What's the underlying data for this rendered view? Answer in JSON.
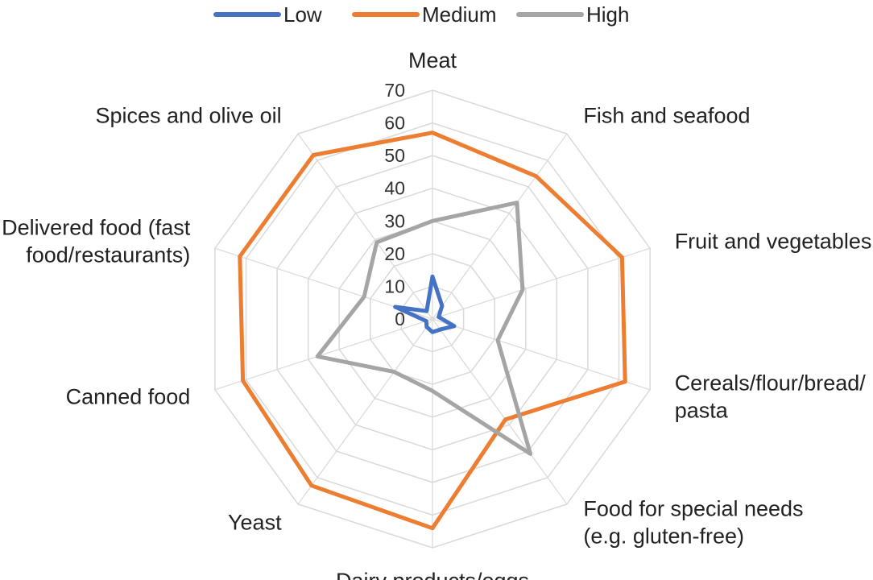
{
  "chart_data": {
    "type": "radar",
    "categories": [
      "Meat",
      "Fish and seafood",
      "Fruit and vegetables",
      "Cereals/flour/bread/ pasta",
      "Food for special needs (e.g. gluten-free)",
      "Dairy products/eggs",
      "Yeast",
      "Canned food",
      "Delivered food (fast food/restaurants)",
      "Spices and olive oil"
    ],
    "category_lines": [
      [
        "Meat"
      ],
      [
        "Fish and seafood"
      ],
      [
        "Fruit and vegetables"
      ],
      [
        "Cereals/flour/bread/",
        "pasta"
      ],
      [
        "Food for special needs",
        "(e.g. gluten-free)"
      ],
      [
        "Dairy products/eggs"
      ],
      [
        "Yeast"
      ],
      [
        "Canned food"
      ],
      [
        "Delivered food (fast",
        "food/restaurants)"
      ],
      [
        "Spices and olive oil"
      ]
    ],
    "ticks": [
      0,
      10,
      20,
      30,
      40,
      50,
      60,
      70
    ],
    "rmax": 70,
    "legend_position": "top",
    "series": [
      {
        "name": "Low",
        "color": "#4472C4",
        "values": [
          13,
          5,
          2,
          7,
          4,
          4,
          3,
          2,
          12,
          3
        ]
      },
      {
        "name": "Medium",
        "color": "#ED7D31",
        "values": [
          57,
          54,
          61,
          62,
          38,
          64,
          63,
          61,
          62,
          62
        ]
      },
      {
        "name": "High",
        "color": "#A5A5A5",
        "values": [
          30,
          44,
          29,
          21,
          51,
          22,
          20,
          37,
          22,
          29
        ]
      }
    ]
  }
}
